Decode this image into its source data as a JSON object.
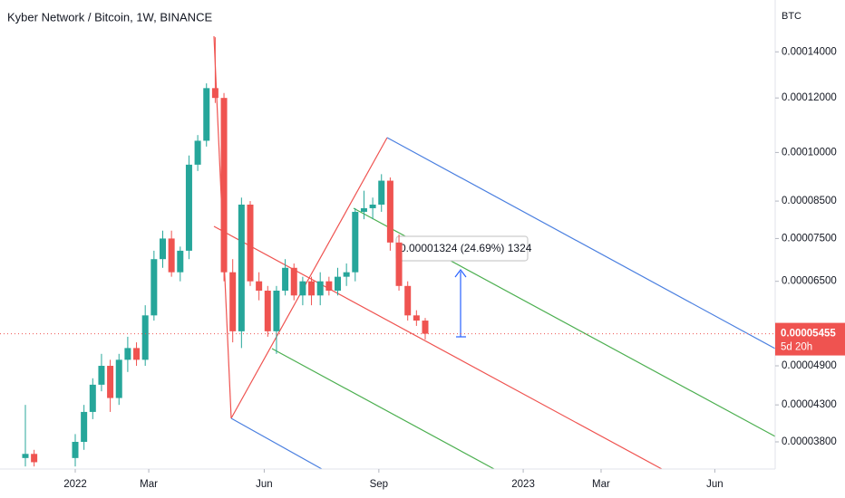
{
  "chart_data": {
    "type": "candlestick",
    "title": "Kyber Network / Bitcoin, 1W, BINANCE",
    "y_unit": "BTC",
    "log_scale": true,
    "grid": false,
    "up_color": "#26a69a",
    "down_color": "#ef5350",
    "x": [
      -5.7,
      -4.7,
      0,
      1,
      2,
      3,
      4,
      5,
      6,
      7,
      8,
      9,
      10,
      11,
      12,
      13,
      14,
      15,
      16,
      17,
      18,
      19,
      20,
      21,
      22,
      23,
      24,
      25,
      26,
      27,
      28,
      29,
      30,
      31,
      32,
      33,
      34,
      35,
      36,
      37,
      38,
      39,
      40
    ],
    "open": [
      3.6e-05,
      3.65e-05,
      3.6e-05,
      3.8e-05,
      4.2e-05,
      4.6e-05,
      4.9e-05,
      4.4e-05,
      5e-05,
      5.2e-05,
      5e-05,
      5.8e-05,
      7e-05,
      7.5e-05,
      6.7e-05,
      7.2e-05,
      9.6e-05,
      0.000104,
      0.000124,
      0.00012,
      6.7e-05,
      5.5e-05,
      8.4e-05,
      6.5e-05,
      6.3e-05,
      5.5e-05,
      6.3e-05,
      6.8e-05,
      6.2e-05,
      6.5e-05,
      6.2e-05,
      6.5e-05,
      6.3e-05,
      6.6e-05,
      6.7e-05,
      8.2e-05,
      8.3e-05,
      8.4e-05,
      9.1e-05,
      7.4e-05,
      6.4e-05,
      5.8e-05,
      5.7e-05
    ],
    "high": [
      4.3e-05,
      3.7e-05,
      3.9e-05,
      4.3e-05,
      4.7e-05,
      5.1e-05,
      5e-05,
      5.1e-05,
      5.4e-05,
      5.3e-05,
      6e-05,
      7.2e-05,
      7.7e-05,
      7.7e-05,
      7.3e-05,
      9.9e-05,
      0.000106,
      0.000126,
      0.000147,
      0.000122,
      7e-05,
      8.6e-05,
      8.5e-05,
      6.7e-05,
      6.4e-05,
      6.4e-05,
      7e-05,
      6.9e-05,
      6.6e-05,
      6.6e-05,
      6.7e-05,
      6.6e-05,
      6.8e-05,
      6.9e-05,
      8.3e-05,
      8.8e-05,
      8.6e-05,
      9.3e-05,
      9.2e-05,
      7.6e-05,
      6.5e-05,
      5.9e-05,
      5.75e-05
    ],
    "low": [
      3.5e-05,
      3.5e-05,
      3.5e-05,
      3.7e-05,
      4.1e-05,
      4.5e-05,
      4.2e-05,
      4.3e-05,
      4.8e-05,
      4.9e-05,
      4.9e-05,
      5.7e-05,
      6.8e-05,
      6.6e-05,
      6.5e-05,
      7e-05,
      9.4e-05,
      0.000102,
      0.000118,
      6.5e-05,
      5.3e-05,
      5.2e-05,
      6.4e-05,
      6.1e-05,
      5.4e-05,
      5.1e-05,
      6.2e-05,
      6.1e-05,
      6e-05,
      6e-05,
      6e-05,
      6.2e-05,
      6.2e-05,
      6.4e-05,
      6.5e-05,
      8e-05,
      8e-05,
      8.2e-05,
      7.2e-05,
      6.3e-05,
      5.7e-05,
      5.6e-05,
      5.35e-05
    ],
    "close": [
      3.65e-05,
      3.55e-05,
      3.8e-05,
      4.2e-05,
      4.6e-05,
      4.9e-05,
      4.4e-05,
      5e-05,
      5.2e-05,
      5e-05,
      5.8e-05,
      7e-05,
      7.5e-05,
      6.7e-05,
      7.2e-05,
      9.6e-05,
      0.000104,
      0.000124,
      0.00012,
      6.7e-05,
      5.5e-05,
      8.4e-05,
      6.5e-05,
      6.3e-05,
      5.5e-05,
      6.3e-05,
      6.8e-05,
      6.2e-05,
      6.5e-05,
      6.2e-05,
      6.5e-05,
      6.3e-05,
      6.6e-05,
      6.7e-05,
      8.2e-05,
      8.3e-05,
      8.4e-05,
      9.1e-05,
      7.4e-05,
      6.4e-05,
      5.8e-05,
      5.7e-05,
      5.455e-05
    ],
    "xlim": [
      -8.6,
      80
    ],
    "xticks": [
      {
        "value": 0,
        "label": "2022"
      },
      {
        "value": 8.4,
        "label": "Mar"
      },
      {
        "value": 21.6,
        "label": "Jun"
      },
      {
        "value": 34.7,
        "label": "Sep"
      },
      {
        "value": 51.2,
        "label": "2023"
      },
      {
        "value": 60.1,
        "label": "Mar"
      },
      {
        "value": 73.1,
        "label": "Jun"
      }
    ],
    "ylim": [
      3.47e-05,
      0.0001665
    ],
    "yticks": [
      {
        "value": 0.00014,
        "label": "0.00014000"
      },
      {
        "value": 0.00012,
        "label": "0.00012000"
      },
      {
        "value": 0.0001,
        "label": "0.00010000"
      },
      {
        "value": 8.5e-05,
        "label": "0.00008500"
      },
      {
        "value": 7.5e-05,
        "label": "0.00007500"
      },
      {
        "value": 6.5e-05,
        "label": "0.00006500"
      },
      {
        "value": 4.9e-05,
        "label": "0.00004900"
      },
      {
        "value": 4.3e-05,
        "label": "0.00004300"
      },
      {
        "value": 3.8e-05,
        "label": "0.00003800"
      }
    ],
    "last_price": {
      "value": 5.455e-05,
      "label": "0.00005455"
    },
    "countdown": "5d 20h",
    "measure_label": "0.00001324 (24.69%) 1324"
  }
}
